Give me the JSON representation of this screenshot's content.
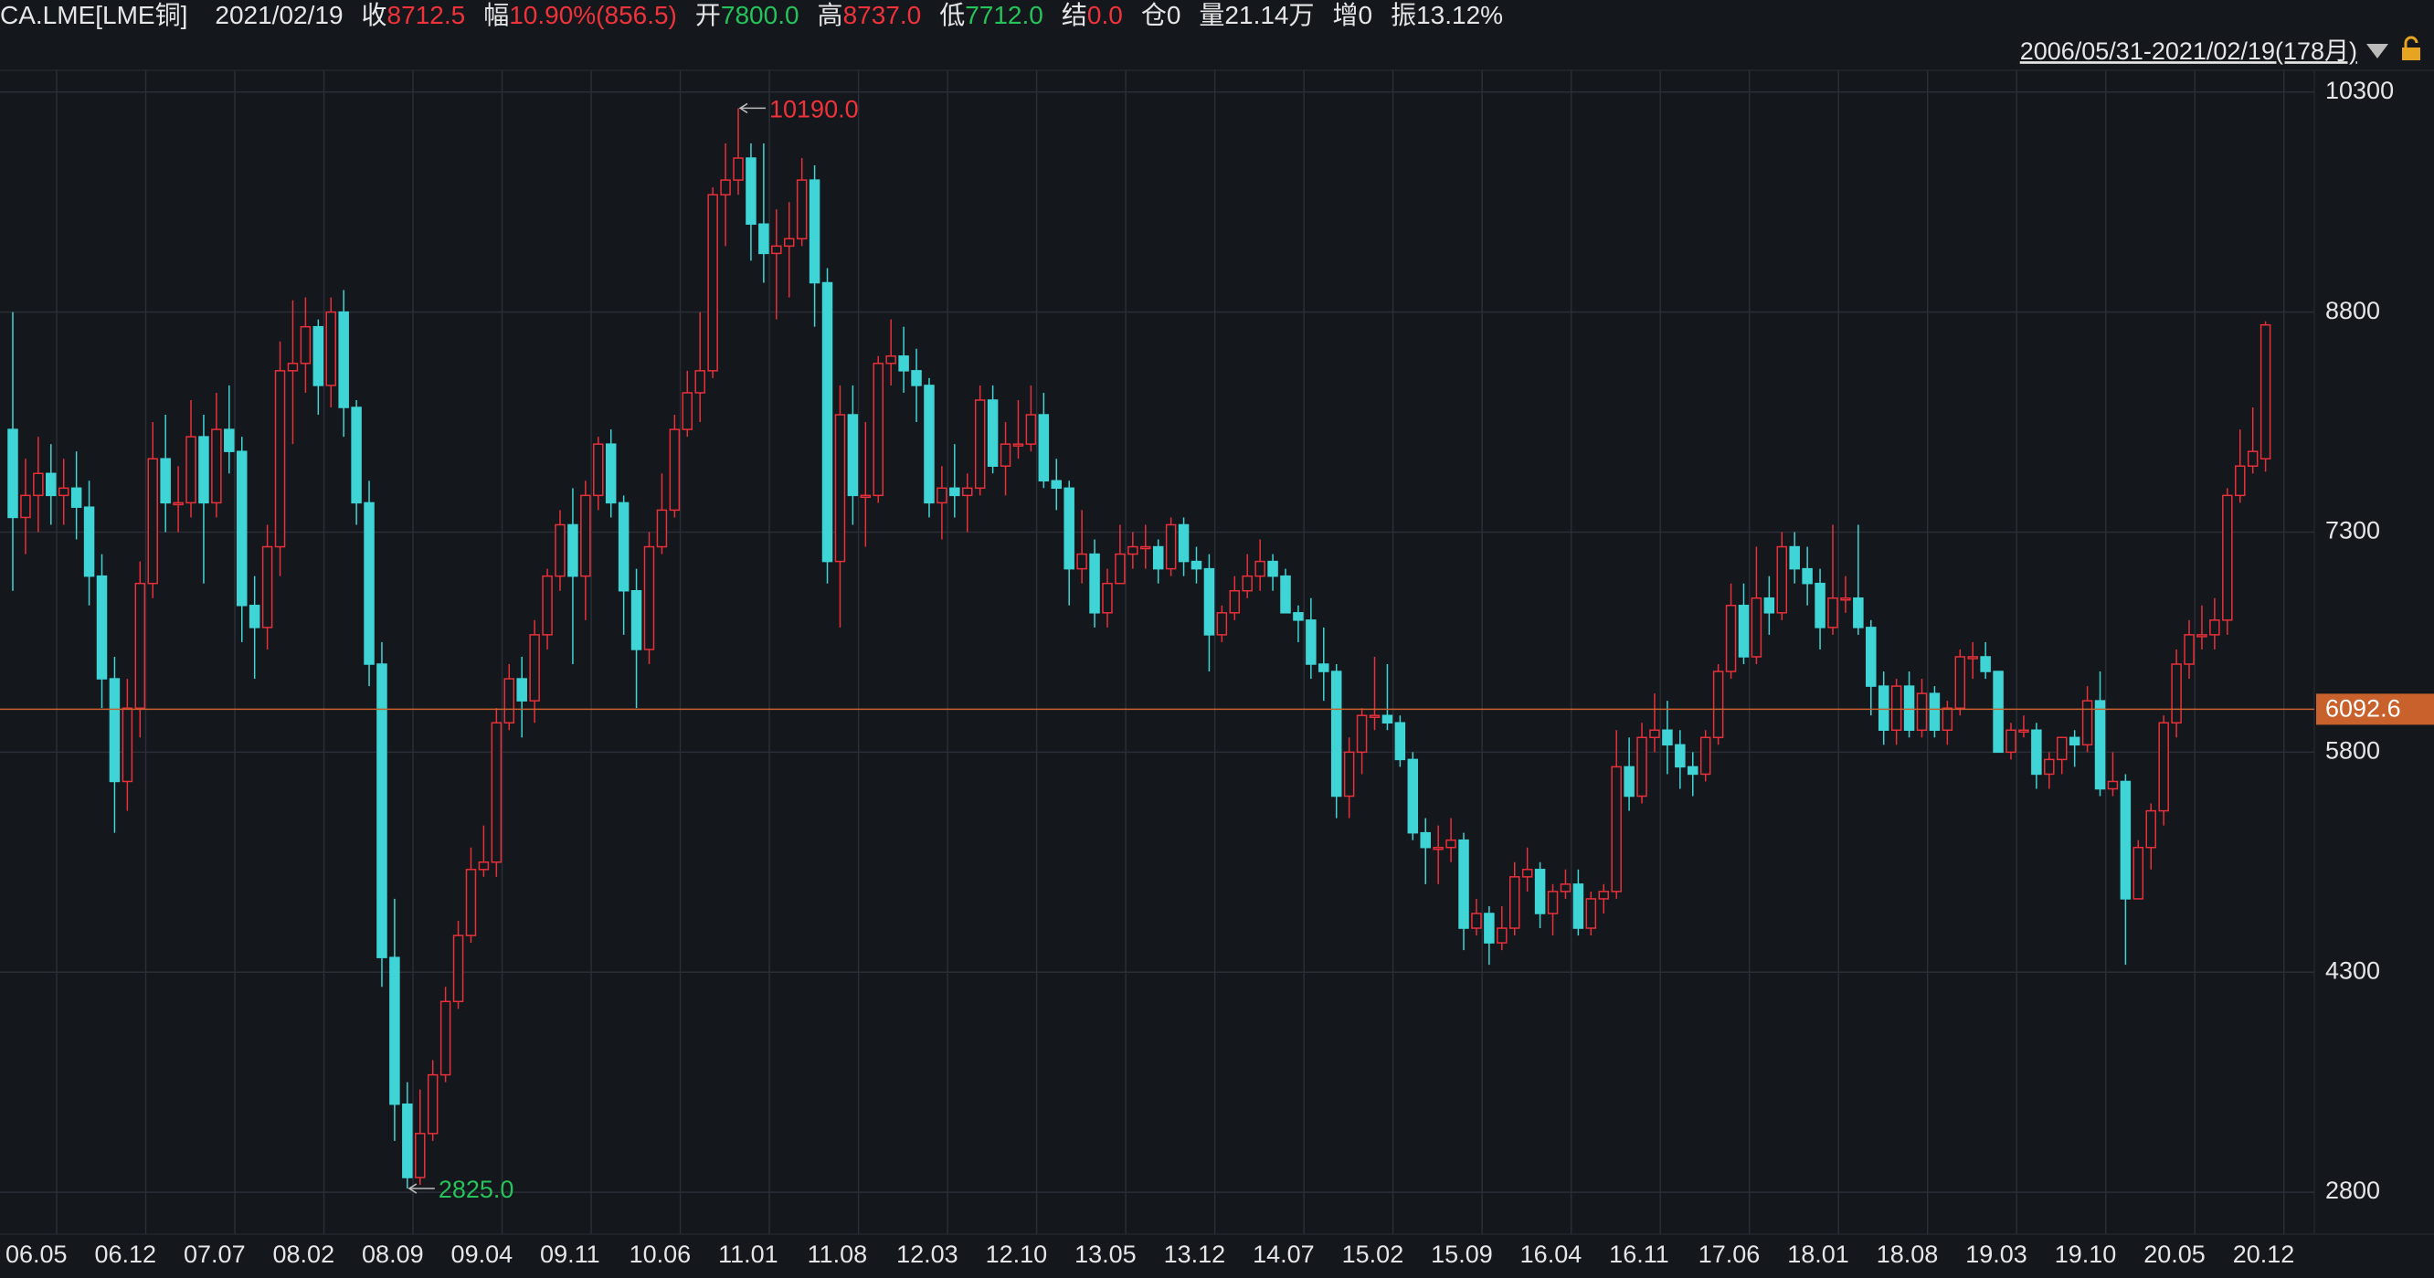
{
  "header": {
    "symbol": "CA.LME[LME铜]",
    "date": "2021/02/19",
    "items": [
      {
        "k": "收",
        "v": "8712.5",
        "color": "#f0333a"
      },
      {
        "k": "幅",
        "v": "10.90%(856.5)",
        "color": "#f0333a"
      },
      {
        "k": "开",
        "v": "7800.0",
        "color": "#25c35a"
      },
      {
        "k": "高",
        "v": "8737.0",
        "color": "#f0333a"
      },
      {
        "k": "低",
        "v": "7712.0",
        "color": "#25c35a"
      },
      {
        "k": "结",
        "v": "0.0",
        "color": "#f0333a"
      },
      {
        "k": "仓",
        "v": "0",
        "color": "#e6e6e6"
      },
      {
        "k": "量",
        "v": "21.14万",
        "color": "#e6e6e6"
      },
      {
        "k": "增",
        "v": "0",
        "color": "#e6e6e6"
      },
      {
        "k": "振",
        "v": "13.12%",
        "color": "#e6e6e6"
      }
    ],
    "range": "2006/05/31-2021/02/19(178月)"
  },
  "chart_data": {
    "type": "candlestick",
    "up_color": "#e8303a",
    "down_color": "#3fd5d6",
    "grid": true,
    "ylim": [
      2514,
      10448
    ],
    "yticks": [
      2800,
      4300,
      5800,
      7300,
      8800,
      10300
    ],
    "reference_line": {
      "value": 6092.6,
      "color": "#c8612b"
    },
    "annotations": [
      {
        "index": 57,
        "value": 10190,
        "label": "10190.0",
        "color": "#f0333a"
      },
      {
        "index": 31,
        "value": 2825,
        "label": "2825.0",
        "color": "#25c35a"
      }
    ],
    "categories": [
      "06.05",
      null,
      null,
      null,
      null,
      null,
      null,
      "06.12",
      null,
      null,
      null,
      null,
      null,
      null,
      "07.07",
      null,
      null,
      null,
      null,
      null,
      null,
      "08.02",
      null,
      null,
      null,
      null,
      null,
      null,
      "08.09",
      null,
      null,
      null,
      null,
      null,
      null,
      "09.04",
      null,
      null,
      null,
      null,
      null,
      null,
      "09.11",
      null,
      null,
      null,
      null,
      null,
      null,
      "10.06",
      null,
      null,
      null,
      null,
      null,
      null,
      "11.01",
      null,
      null,
      null,
      null,
      null,
      null,
      "11.08",
      null,
      null,
      null,
      null,
      null,
      null,
      "12.03",
      null,
      null,
      null,
      null,
      null,
      null,
      "12.10",
      null,
      null,
      null,
      null,
      null,
      null,
      "13.05",
      null,
      null,
      null,
      null,
      null,
      null,
      "13.12",
      null,
      null,
      null,
      null,
      null,
      null,
      "14.07",
      null,
      null,
      null,
      null,
      null,
      null,
      "15.02",
      null,
      null,
      null,
      null,
      null,
      null,
      "15.09",
      null,
      null,
      null,
      null,
      null,
      null,
      "16.04",
      null,
      null,
      null,
      null,
      null,
      null,
      "16.11",
      null,
      null,
      null,
      null,
      null,
      null,
      "17.06",
      null,
      null,
      null,
      null,
      null,
      null,
      "18.01",
      null,
      null,
      null,
      null,
      null,
      null,
      "18.08",
      null,
      null,
      null,
      null,
      null,
      null,
      "19.03",
      null,
      null,
      null,
      null,
      null,
      null,
      "19.10",
      null,
      null,
      null,
      null,
      null,
      null,
      "20.05",
      null,
      null,
      null,
      null,
      null,
      null,
      "20.12",
      null,
      null
    ],
    "open": [
      8000,
      7400,
      7550,
      7700,
      7550,
      7600,
      7470,
      7000,
      6300,
      5600,
      6100,
      6950,
      7800,
      7500,
      7500,
      7950,
      7500,
      8000,
      7850,
      6800,
      6650,
      7200,
      8400,
      8450,
      8700,
      8300,
      8800,
      8150,
      7500,
      6400,
      4400,
      3400,
      2900,
      3200,
      3600,
      4100,
      4550,
      5000,
      5050,
      6000,
      6300,
      6150,
      6600,
      7000,
      7350,
      7000,
      7550,
      7900,
      7500,
      6900,
      6500,
      7200,
      7450,
      8000,
      8250,
      8400,
      9600,
      9700,
      9850,
      9400,
      9200,
      9250,
      9300,
      9700,
      9000,
      7100,
      8100,
      7550,
      7550,
      8450,
      8500,
      8400,
      8300,
      7500,
      7600,
      7550,
      7600,
      8200,
      7750,
      7900,
      7900,
      8100,
      7650,
      7600,
      7050,
      7150,
      6750,
      6950,
      7150,
      7200,
      7200,
      7050,
      7350,
      7100,
      7050,
      6600,
      6750,
      6900,
      7000,
      7100,
      7000,
      6750,
      6700,
      6400,
      6350,
      5500,
      5800,
      6050,
      6050,
      6000,
      5750,
      5250,
      5150,
      5150,
      5200,
      4600,
      4700,
      4500,
      4600,
      4950,
      5000,
      4700,
      4850,
      4900,
      4600,
      4800,
      4850,
      5700,
      5500,
      5900,
      5950,
      5850,
      5700,
      5650,
      5900,
      6350,
      6800,
      6450,
      6850,
      6750,
      7200,
      7050,
      6950,
      6650,
      6850,
      6850,
      6650,
      6250,
      5950,
      6250,
      5950,
      6200,
      5950,
      6100,
      6450,
      6450,
      6350,
      5800,
      5950,
      5950,
      5650,
      5750,
      5900,
      5850,
      6150,
      5550,
      5600,
      4800,
      5150,
      5400,
      6000,
      6400,
      6600,
      6600,
      6700,
      7550,
      7750,
      7800
    ],
    "high": [
      8800,
      7800,
      7950,
      7900,
      7800,
      7850,
      7650,
      7150,
      6450,
      6300,
      7100,
      8050,
      8100,
      7750,
      8200,
      8100,
      8250,
      8300,
      7950,
      7000,
      7350,
      8600,
      8880,
      8900,
      8750,
      8900,
      8950,
      8200,
      7650,
      6550,
      4800,
      3550,
      3500,
      3700,
      4200,
      4650,
      5150,
      5300,
      6100,
      6400,
      6450,
      6700,
      7050,
      7450,
      7600,
      7650,
      7950,
      8000,
      7550,
      7050,
      7300,
      7700,
      8100,
      8400,
      8800,
      9650,
      9950,
      10190,
      9950,
      9950,
      9500,
      9550,
      9850,
      9800,
      9100,
      8300,
      8300,
      8050,
      8500,
      8750,
      8700,
      8550,
      8350,
      7750,
      7900,
      7700,
      8300,
      8300,
      8050,
      8200,
      8300,
      8250,
      7800,
      7650,
      7450,
      7250,
      7050,
      7350,
      7300,
      7350,
      7250,
      7400,
      7400,
      7200,
      7150,
      6800,
      7000,
      7150,
      7250,
      7150,
      7050,
      6800,
      6850,
      6650,
      6400,
      5900,
      6100,
      6450,
      6400,
      6050,
      5800,
      5350,
      5300,
      5350,
      5250,
      4800,
      4750,
      4750,
      5050,
      5150,
      5050,
      4900,
      5000,
      5000,
      4850,
      4900,
      5950,
      5900,
      6000,
      6200,
      6150,
      5950,
      5800,
      5950,
      6400,
      6950,
      6950,
      7200,
      7000,
      7300,
      7300,
      7200,
      7050,
      7350,
      7000,
      7350,
      6700,
      6350,
      6300,
      6350,
      6300,
      6250,
      6150,
      6500,
      6550,
      6550,
      6350,
      6000,
      6050,
      6000,
      5800,
      5900,
      5950,
      6250,
      6350,
      5800,
      5650,
      5200,
      5450,
      6050,
      6500,
      6700,
      6800,
      6850,
      7600,
      8000,
      8150,
      8737
    ],
    "low": [
      6900,
      7150,
      7300,
      7350,
      7350,
      7250,
      6800,
      6100,
      5250,
      5400,
      5900,
      6850,
      7300,
      7300,
      7400,
      6950,
      7400,
      7700,
      6550,
      6300,
      6500,
      7000,
      7900,
      8250,
      8100,
      8150,
      7950,
      7350,
      6250,
      4200,
      3150,
      2825,
      2850,
      3150,
      3550,
      4050,
      4500,
      4950,
      4950,
      5950,
      5900,
      6000,
      6500,
      6900,
      6400,
      6700,
      7450,
      7400,
      6600,
      6100,
      6400,
      7150,
      7400,
      7950,
      8050,
      8350,
      9250,
      9600,
      9150,
      9000,
      8750,
      8900,
      9250,
      8700,
      6950,
      6650,
      7350,
      7200,
      7500,
      8300,
      8250,
      8050,
      7400,
      7250,
      7400,
      7300,
      7550,
      7700,
      7550,
      7800,
      7850,
      7600,
      7450,
      6800,
      6950,
      6650,
      6650,
      6950,
      7050,
      7050,
      6950,
      7000,
      7000,
      6950,
      6350,
      6550,
      6700,
      6850,
      6900,
      6900,
      6750,
      6550,
      6300,
      6150,
      5350,
      5350,
      5650,
      5950,
      5950,
      5700,
      5200,
      4900,
      4900,
      5050,
      4450,
      4550,
      4350,
      4450,
      4550,
      4850,
      4600,
      4550,
      4800,
      4550,
      4550,
      4700,
      4800,
      5400,
      5450,
      5800,
      5650,
      5550,
      5500,
      5600,
      5850,
      6300,
      6400,
      6400,
      6600,
      6700,
      6950,
      6800,
      6500,
      6600,
      6750,
      6600,
      6050,
      5850,
      5850,
      5900,
      5900,
      5900,
      5850,
      6050,
      6300,
      6300,
      5800,
      5750,
      5900,
      5550,
      5550,
      5650,
      5700,
      5800,
      5500,
      5500,
      4350,
      4800,
      5000,
      5300,
      5900,
      6300,
      6500,
      6500,
      6600,
      7500,
      7700,
      7712
    ],
    "close": [
      7400,
      7550,
      7700,
      7550,
      7600,
      7470,
      7000,
      6300,
      5600,
      6100,
      6950,
      7800,
      7500,
      7500,
      7950,
      7500,
      8000,
      7850,
      6800,
      6650,
      7200,
      8400,
      8450,
      8700,
      8300,
      8800,
      8150,
      7500,
      6400,
      4400,
      3400,
      2900,
      3200,
      3600,
      4100,
      4550,
      5000,
      5050,
      6000,
      6300,
      6150,
      6600,
      7000,
      7350,
      7000,
      7550,
      7900,
      7500,
      6900,
      6500,
      7200,
      7450,
      8000,
      8250,
      8400,
      9600,
      9700,
      9850,
      9400,
      9200,
      9250,
      9300,
      9700,
      9000,
      7100,
      8100,
      7550,
      7550,
      8450,
      8500,
      8400,
      8300,
      7500,
      7600,
      7550,
      7600,
      8200,
      7750,
      7900,
      7900,
      8100,
      7650,
      7600,
      7050,
      7150,
      6750,
      6950,
      7150,
      7200,
      7200,
      7050,
      7350,
      7100,
      7050,
      6600,
      6750,
      6900,
      7000,
      7100,
      7000,
      6750,
      6700,
      6400,
      6350,
      5500,
      5800,
      6050,
      6050,
      6000,
      5750,
      5250,
      5150,
      5150,
      5200,
      4600,
      4700,
      4500,
      4600,
      4950,
      5000,
      4700,
      4850,
      4900,
      4600,
      4800,
      4850,
      5700,
      5500,
      5900,
      5950,
      5850,
      5700,
      5650,
      5900,
      6350,
      6800,
      6450,
      6850,
      6750,
      7200,
      7050,
      6950,
      6650,
      6850,
      6850,
      6650,
      6250,
      5950,
      6250,
      5950,
      6200,
      5950,
      6100,
      6450,
      6450,
      6350,
      5800,
      5950,
      5950,
      5650,
      5750,
      5900,
      5850,
      6150,
      5550,
      5600,
      4800,
      5150,
      5400,
      6000,
      6400,
      6600,
      6600,
      6700,
      7550,
      7750,
      7850,
      8712.5
    ]
  }
}
